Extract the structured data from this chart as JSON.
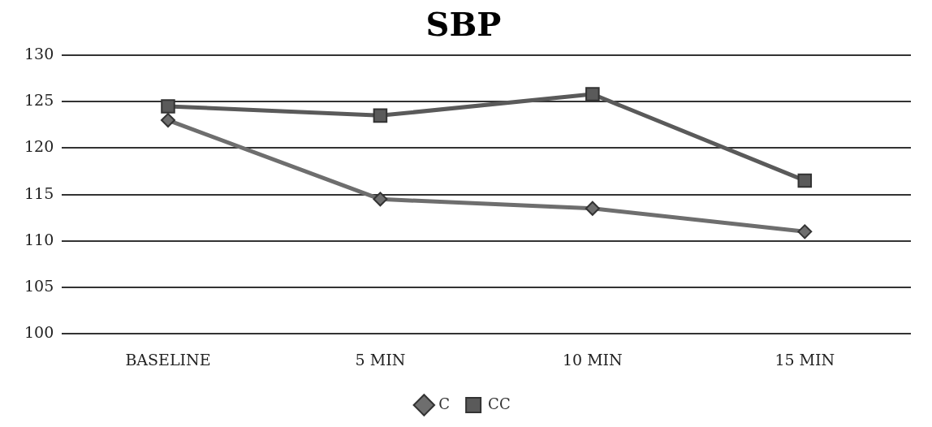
{
  "chart_data": {
    "type": "line",
    "title": "SBP",
    "categories": [
      "BASELINE",
      "5 MIN",
      "10 MIN",
      "15 MIN"
    ],
    "series": [
      {
        "name": "C",
        "color": "#6e6e6e",
        "marker": "diamond",
        "values": [
          123,
          114.5,
          113.5,
          111
        ]
      },
      {
        "name": "CC",
        "color": "#5a5a5a",
        "marker": "square",
        "values": [
          124.5,
          123.5,
          125.8,
          116.5
        ]
      }
    ],
    "ylim": [
      100,
      130
    ],
    "yticks": [
      100,
      105,
      110,
      115,
      120,
      125,
      130
    ],
    "grid": "y",
    "legend": "bottom",
    "line_style": "solid"
  }
}
